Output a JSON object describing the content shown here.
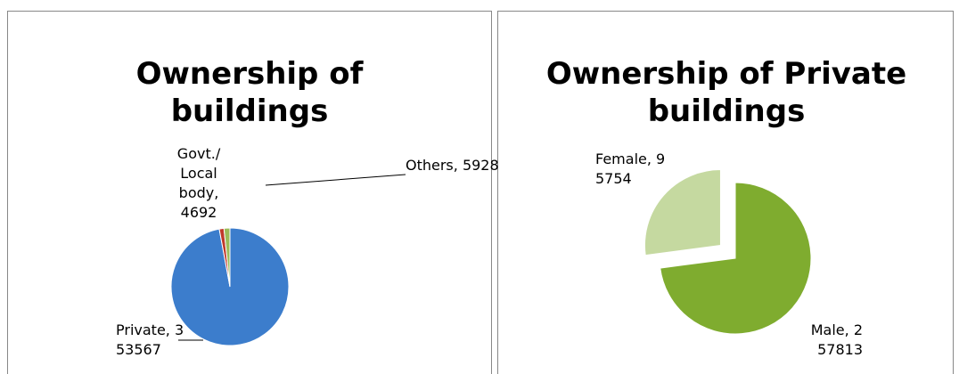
{
  "chart_data": [
    {
      "type": "pie",
      "title": "Ownership of buildings",
      "values": [
        353567,
        4692,
        5928
      ],
      "value_labels": [
        "Private, 353567",
        "Govt./Local body, 4692",
        "Others, 5928"
      ],
      "colors": [
        "#3c7dcc",
        "#c0392b",
        "#9bbb59"
      ],
      "explode": [
        false,
        false,
        false
      ]
    },
    {
      "type": "pie",
      "title": "Ownership of Private buildings",
      "values": [
        257813,
        95754
      ],
      "value_labels": [
        "Male, 257813",
        "Female, 95754"
      ],
      "colors": [
        "#7fac2f",
        "#c5d9a0"
      ],
      "explode": [
        false,
        true
      ]
    }
  ]
}
